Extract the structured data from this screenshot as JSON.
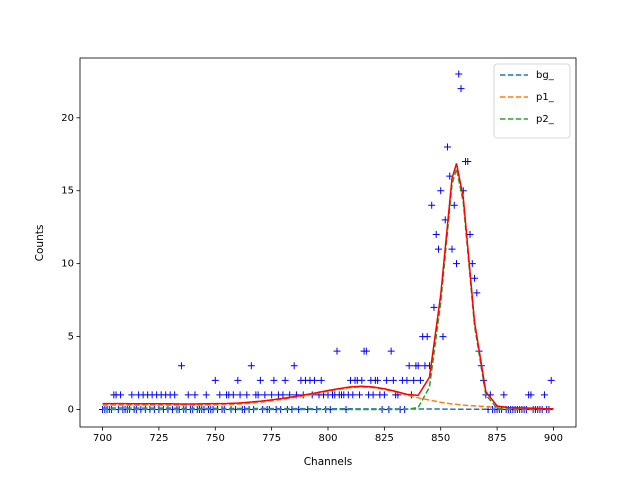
{
  "chart_data": {
    "type": "line",
    "xlabel": "Channels",
    "ylabel": "Counts",
    "xlim": [
      690,
      910
    ],
    "ylim": [
      -1.2,
      24.1
    ],
    "xticks": [
      700,
      725,
      750,
      775,
      800,
      825,
      850,
      875,
      900
    ],
    "yticks": [
      0,
      5,
      10,
      15,
      20
    ],
    "legend": "upper right",
    "points": {
      "color": "#0000ff",
      "marker": "+",
      "x": [
        700,
        701,
        702,
        703,
        704,
        705,
        706,
        707,
        708,
        709,
        710,
        711,
        712,
        713,
        714,
        715,
        716,
        717,
        718,
        719,
        720,
        721,
        722,
        723,
        724,
        725,
        726,
        727,
        728,
        729,
        730,
        731,
        732,
        733,
        734,
        735,
        736,
        737,
        738,
        739,
        740,
        741,
        742,
        743,
        744,
        745,
        746,
        747,
        748,
        749,
        750,
        751,
        752,
        753,
        754,
        755,
        756,
        757,
        758,
        759,
        760,
        761,
        762,
        763,
        764,
        765,
        766,
        767,
        768,
        769,
        770,
        771,
        772,
        773,
        774,
        775,
        776,
        777,
        778,
        779,
        780,
        781,
        782,
        783,
        784,
        785,
        786,
        787,
        788,
        789,
        790,
        791,
        792,
        793,
        794,
        795,
        796,
        797,
        798,
        799,
        800,
        801,
        802,
        803,
        804,
        805,
        806,
        807,
        808,
        809,
        810,
        811,
        812,
        813,
        814,
        815,
        816,
        817,
        818,
        819,
        820,
        821,
        822,
        823,
        824,
        825,
        826,
        827,
        828,
        829,
        830,
        831,
        832,
        833,
        834,
        835,
        836,
        837,
        838,
        839,
        840,
        841,
        842,
        843,
        844,
        845,
        846,
        847,
        848,
        849,
        850,
        851,
        852,
        853,
        854,
        855,
        856,
        857,
        858,
        859,
        860,
        861,
        862,
        863,
        864,
        865,
        866,
        867,
        868,
        869,
        870,
        871,
        872,
        873,
        874,
        875,
        876,
        877,
        878,
        879,
        880,
        881,
        882,
        883,
        884,
        885,
        886,
        887,
        888,
        889,
        890,
        891,
        892,
        893,
        894,
        895,
        896,
        897,
        898,
        899
      ],
      "values": [
        0,
        0,
        0,
        0,
        0,
        1,
        1,
        0,
        1,
        0,
        0,
        0,
        0,
        1,
        0,
        0,
        1,
        0,
        1,
        0,
        1,
        0,
        1,
        0,
        1,
        0,
        1,
        0,
        1,
        0,
        1,
        0,
        1,
        0,
        0,
        3,
        0,
        0,
        1,
        0,
        0,
        1,
        0,
        0,
        0,
        0,
        1,
        0,
        0,
        0,
        2,
        0,
        1,
        0,
        0,
        1,
        1,
        0,
        1,
        0,
        2,
        1,
        0,
        0,
        1,
        0,
        3,
        0,
        1,
        1,
        2,
        0,
        1,
        0,
        0,
        1,
        2,
        0,
        1,
        0,
        1,
        2,
        0,
        1,
        0,
        3,
        1,
        0,
        2,
        1,
        2,
        0,
        2,
        1,
        2,
        0,
        1,
        2,
        1,
        0,
        1,
        0,
        1,
        1,
        4,
        1,
        1,
        1,
        0,
        1,
        2,
        1,
        2,
        2,
        1,
        2,
        4,
        4,
        1,
        2,
        1,
        2,
        2,
        1,
        0,
        1,
        2,
        0,
        4,
        2,
        1,
        1,
        0,
        2,
        0,
        2,
        3,
        1,
        2,
        3,
        3,
        2,
        5,
        3,
        5,
        3,
        14,
        7,
        12,
        11,
        15,
        5,
        13,
        18,
        16,
        11,
        14,
        10,
        23,
        22,
        15,
        17,
        17,
        12,
        10,
        9,
        8,
        4,
        3,
        2,
        1,
        0,
        1,
        0,
        0,
        0,
        0,
        0,
        1,
        0,
        0,
        0,
        0,
        0,
        0,
        0,
        0,
        0,
        0,
        1,
        1,
        0,
        0,
        0,
        0,
        0,
        1,
        0,
        0,
        2
      ]
    },
    "x": [
      700,
      705,
      710,
      715,
      720,
      725,
      730,
      735,
      740,
      745,
      750,
      755,
      760,
      765,
      770,
      775,
      780,
      785,
      790,
      795,
      800,
      805,
      810,
      815,
      820,
      825,
      830,
      835,
      840,
      845,
      850,
      855,
      857,
      860,
      865,
      870,
      875,
      880,
      885,
      890,
      895,
      900
    ],
    "series": [
      {
        "name": "bg_",
        "color": "#1f77b4",
        "dashed": true,
        "values": [
          0.1,
          0.1,
          0.1,
          0.09,
          0.09,
          0.09,
          0.09,
          0.08,
          0.08,
          0.08,
          0.08,
          0.07,
          0.07,
          0.07,
          0.07,
          0.06,
          0.06,
          0.06,
          0.06,
          0.05,
          0.05,
          0.05,
          0.05,
          0.04,
          0.04,
          0.04,
          0.04,
          0.03,
          0.03,
          0.03,
          0.03,
          0.02,
          0.02,
          0.02,
          0.02,
          0.02,
          0.01,
          0.01,
          0.01,
          0.01,
          0,
          0
        ]
      },
      {
        "name": "p1_",
        "color": "#ff7f0e",
        "dashed": true,
        "values": [
          0.3,
          0.3,
          0.3,
          0.3,
          0.3,
          0.3,
          0.3,
          0.3,
          0.3,
          0.31,
          0.32,
          0.34,
          0.37,
          0.43,
          0.5,
          0.6,
          0.7,
          0.82,
          0.95,
          1.1,
          1.25,
          1.38,
          1.5,
          1.55,
          1.5,
          1.38,
          1.2,
          1.0,
          0.8,
          0.65,
          0.5,
          0.38,
          0.35,
          0.3,
          0.25,
          0.2,
          0.15,
          0.12,
          0.1,
          0.08,
          0.06,
          0.05
        ]
      },
      {
        "name": "p2_",
        "color": "#2ca02c",
        "dashed": true,
        "values": [
          0,
          0,
          0,
          0,
          0,
          0,
          0,
          0,
          0,
          0,
          0,
          0,
          0,
          0,
          0,
          0,
          0,
          0,
          0,
          0,
          0,
          0,
          0,
          0,
          0,
          0,
          0,
          0.01,
          0.14,
          1.53,
          7.34,
          15.44,
          16.5,
          14.22,
          5.73,
          1.01,
          0.08,
          0,
          0,
          0,
          0,
          0
        ]
      }
    ],
    "fit": {
      "color": "#ff0000",
      "values": [
        0.4,
        0.4,
        0.4,
        0.39,
        0.39,
        0.39,
        0.39,
        0.38,
        0.38,
        0.39,
        0.4,
        0.41,
        0.44,
        0.5,
        0.57,
        0.66,
        0.76,
        0.88,
        1.01,
        1.15,
        1.3,
        1.43,
        1.55,
        1.59,
        1.54,
        1.42,
        1.24,
        1.04,
        0.97,
        2.21,
        7.87,
        15.84,
        16.87,
        14.54,
        6.0,
        1.23,
        0.24,
        0.13,
        0.11,
        0.09,
        0.06,
        0.05
      ]
    }
  }
}
